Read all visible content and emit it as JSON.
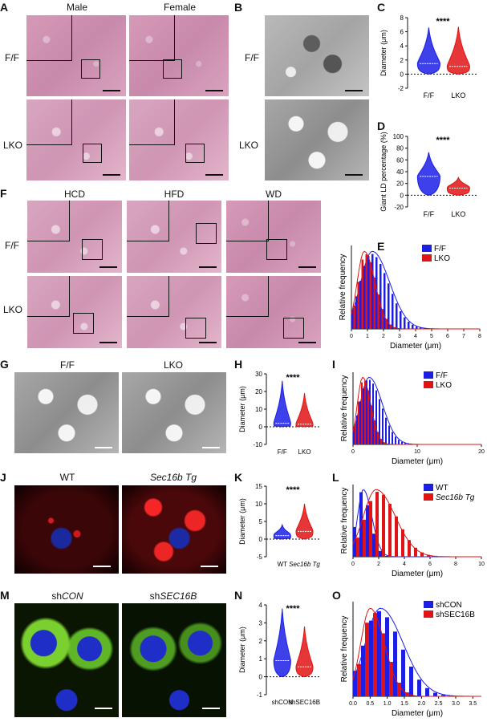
{
  "panels": {
    "A": {
      "label": "A",
      "cols": [
        "Male",
        "Female"
      ],
      "rows": [
        "F/F",
        "LKO"
      ]
    },
    "B": {
      "label": "B",
      "rows": [
        "F/F",
        "LKO"
      ]
    },
    "C": {
      "label": "C"
    },
    "D": {
      "label": "D"
    },
    "E": {
      "label": "E"
    },
    "F": {
      "label": "F",
      "cols": [
        "HCD",
        "HFD",
        "WD"
      ],
      "rows": [
        "F/F",
        "LKO"
      ]
    },
    "G": {
      "label": "G",
      "cols": [
        "F/F",
        "LKO"
      ]
    },
    "H": {
      "label": "H"
    },
    "I": {
      "label": "I"
    },
    "J": {
      "label": "J",
      "cols": [
        "WT",
        "Sec16b Tg"
      ]
    },
    "K": {
      "label": "K"
    },
    "L": {
      "label": "L"
    },
    "M": {
      "label": "M",
      "cols": [
        "shCON",
        "shSEC16B"
      ]
    },
    "N": {
      "label": "N"
    },
    "O": {
      "label": "O"
    }
  },
  "colors": {
    "blue": "#1c1ee6",
    "red": "#e01414"
  },
  "chart_data": [
    {
      "id": "C",
      "type": "violin",
      "ylabel": "Diameter (μm)",
      "ylim": [
        -2,
        8
      ],
      "yticks": [
        -2,
        0,
        2,
        4,
        6,
        8
      ],
      "categories": [
        "F/F",
        "LKO"
      ],
      "significance": "****",
      "medians": [
        1.5,
        1.1
      ],
      "max": [
        6.6,
        6.7
      ]
    },
    {
      "id": "D",
      "type": "violin",
      "ylabel": "Giant LD percentage (%)",
      "ylim": [
        -20,
        100
      ],
      "yticks": [
        -20,
        0,
        20,
        40,
        60,
        80,
        100
      ],
      "categories": [
        "F/F",
        "LKO"
      ],
      "significance": "****",
      "medians": [
        32,
        12
      ],
      "max": [
        73,
        30
      ]
    },
    {
      "id": "E",
      "type": "bar",
      "xlabel": "Diameter (μm)",
      "ylabel": "Relative frequency",
      "xticks": [
        0,
        1,
        2,
        3,
        4,
        5,
        6,
        7,
        8
      ],
      "series": [
        {
          "name": "F/F",
          "peak": 1.3
        },
        {
          "name": "LKO",
          "peak": 0.8
        }
      ]
    },
    {
      "id": "H",
      "type": "violin",
      "ylabel": "Diameter (μm)",
      "ylim": [
        -10,
        30
      ],
      "yticks": [
        -10,
        0,
        10,
        20,
        30
      ],
      "categories": [
        "F/F",
        "LKO"
      ],
      "significance": "****",
      "medians": [
        2,
        1.5
      ],
      "max": [
        26,
        19
      ]
    },
    {
      "id": "I",
      "type": "bar",
      "xlabel": "Diameter (μm)",
      "ylabel": "Relative frequency",
      "xticks": [
        0,
        10,
        20
      ],
      "series": [
        {
          "name": "F/F",
          "peak": 2.5
        },
        {
          "name": "LKO",
          "peak": 1.5
        }
      ]
    },
    {
      "id": "K",
      "type": "violin",
      "ylabel": "Diameter (μm)",
      "ylim": [
        -5,
        15
      ],
      "yticks": [
        -5,
        0,
        5,
        10,
        15
      ],
      "categories": [
        "WT",
        "Sec16b Tg"
      ],
      "significance": "****",
      "medians": [
        1,
        2.2
      ],
      "max": [
        4,
        10
      ]
    },
    {
      "id": "L",
      "type": "bar",
      "xlabel": "Diameter (μm)",
      "ylabel": "Relative frequency",
      "xticks": [
        0,
        2,
        4,
        6,
        8,
        10
      ],
      "series": [
        {
          "name": "WT",
          "peak": 0.8
        },
        {
          "name": "Sec16b Tg",
          "peak": 1.8
        }
      ]
    },
    {
      "id": "N",
      "type": "violin",
      "ylabel": "Diameter (μm)",
      "ylim": [
        -1,
        4
      ],
      "yticks": [
        -1,
        0,
        1,
        2,
        3,
        4
      ],
      "categories": [
        "shCON",
        "shSEC16B"
      ],
      "significance": "****",
      "medians": [
        0.9,
        0.55
      ],
      "max": [
        3.8,
        2.8
      ]
    },
    {
      "id": "O",
      "type": "bar",
      "xlabel": "Diameter (μm)",
      "ylabel": "Relative frequency",
      "xticks": [
        0.0,
        0.5,
        1.0,
        1.5,
        2.0,
        2.5,
        3.0,
        3.5
      ],
      "series": [
        {
          "name": "shCON",
          "peak": 0.8
        },
        {
          "name": "shSEC16B",
          "peak": 0.5
        }
      ]
    }
  ]
}
